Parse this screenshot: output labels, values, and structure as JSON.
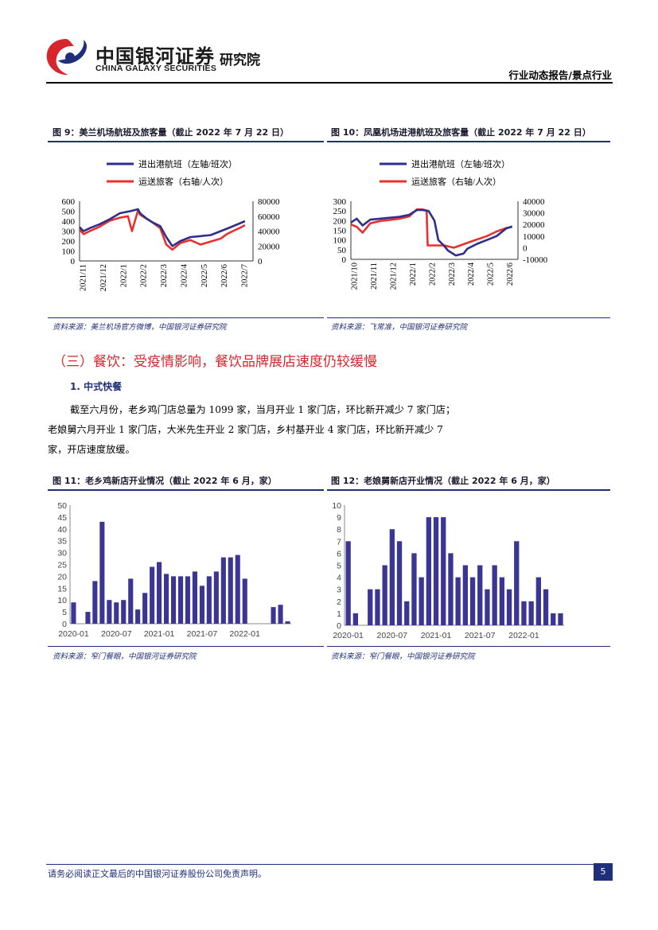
{
  "header": {
    "logo_cn": "中国银河证券",
    "logo_en": "CHINA GALAXY SECURITIES",
    "institute": "研究院",
    "report_type": "行业动态报告/景点行业"
  },
  "fig9": {
    "title": "图 9：美兰机场航班及旅客量（截止 2022 年 7 月 22 日）",
    "source": "资料来源：美兰机场官方微博，中国银河证券研究院"
  },
  "fig10": {
    "title": "图 10：凤凰机场进港航班及旅客量（截止 2022 年 7 月 22 日）",
    "source": "资料来源：飞常准，中国银河证券研究院"
  },
  "section3": {
    "heading": "（三）餐饮：受疫情影响，餐饮品牌展店速度仍较缓慢",
    "sub_heading": "1. 中式快餐",
    "para_lines": [
      "截至六月份，老乡鸡门店总量为 1099 家，当月开业 1 家门店，环比新开减少 7 家门店；",
      "老娘舅六月开业 1 家门店，大米先生开业 2 家门店，乡村基开业 4 家门店，环比新开减少 7",
      "家，开店速度放缓。"
    ]
  },
  "fig11": {
    "title": "图 11：老乡鸡新店开业情况（截止 2022 年 6 月，家）",
    "source": "资料来源：窄门餐眼，中国银河证券研究院"
  },
  "fig12": {
    "title": "图 12：老娘舅新店开业情况（截止 2022 年 6 月，家）",
    "source": "资料来源：窄门餐眼，中国银河证券研究院"
  },
  "footer": {
    "disclaimer": "请务必阅读正文最后的中国银河证券股份公司免责声明。",
    "page_number": "5"
  },
  "colors": {
    "navy": "#2e2f8c",
    "red": "#e8312f",
    "brand_red": "#d7262e",
    "bar": "#3b3594"
  },
  "chart_data": [
    {
      "id": "fig9",
      "type": "line",
      "legend": [
        "进出港航班（左轴/班次）",
        "运送旅客（右轴/人次）"
      ],
      "x_tick_labels": [
        "2021/11",
        "2021/12",
        "2022/1",
        "2022/2",
        "2022/3",
        "2022/4",
        "2022/5",
        "2022/6",
        "2022/7"
      ],
      "y_left": {
        "ticks": [
          "600",
          "500",
          "400",
          "300",
          "200",
          "100",
          "0"
        ],
        "range": [
          0,
          600
        ]
      },
      "y_right": {
        "ticks": [
          "80000",
          "60000",
          "40000",
          "20000",
          "0"
        ],
        "range": [
          0,
          80000
        ]
      },
      "series": [
        {
          "name": "进出港航班",
          "axis": "left",
          "color": "#2e2f8c",
          "x": [
            0,
            0.2,
            0.5,
            1,
            1.5,
            2,
            2.5,
            2.9,
            3,
            3.3,
            3.6,
            4,
            4.3,
            4.6,
            5,
            5.5,
            6,
            6.5,
            7,
            7.5,
            8.2
          ],
          "values": [
            340,
            300,
            330,
            370,
            420,
            480,
            500,
            520,
            480,
            430,
            390,
            350,
            240,
            150,
            200,
            240,
            250,
            260,
            300,
            340,
            400
          ]
        },
        {
          "name": "运送旅客",
          "axis": "right",
          "color": "#e8312f",
          "x": [
            0,
            0.2,
            0.5,
            1,
            1.5,
            2,
            2.4,
            2.6,
            2.9,
            3,
            3.3,
            3.6,
            4,
            4.3,
            4.6,
            5,
            5.5,
            6,
            6.5,
            7,
            7.3,
            7.6,
            8,
            8.2
          ],
          "values": [
            42000,
            36000,
            40000,
            46000,
            54000,
            58000,
            60000,
            40000,
            68000,
            62000,
            57000,
            52000,
            44000,
            22000,
            15000,
            24000,
            28000,
            22000,
            26000,
            30000,
            36000,
            40000,
            45000,
            48000
          ]
        }
      ]
    },
    {
      "id": "fig10",
      "type": "line",
      "legend": [
        "进出港航班（左轴/班次）",
        "运送旅客（右轴/人次）"
      ],
      "x_tick_labels": [
        "2021/10",
        "2021/11",
        "2021/12",
        "2022/1",
        "2022/2",
        "2022/3",
        "2022/4",
        "2022/5",
        "2022/6"
      ],
      "y_left": {
        "ticks": [
          "300",
          "250",
          "200",
          "150",
          "100",
          "50",
          "0"
        ],
        "range": [
          0,
          300
        ]
      },
      "y_right": {
        "ticks": [
          "40000",
          "30000",
          "20000",
          "10000",
          "0",
          "-10000"
        ],
        "range": [
          -10000,
          40000
        ]
      },
      "series": [
        {
          "name": "进出港航班",
          "axis": "left",
          "color": "#2e2f8c",
          "x": [
            0,
            0.3,
            0.6,
            1,
            1.5,
            2,
            2.5,
            3,
            3.4,
            3.7,
            4,
            4.3,
            4.5,
            4.8,
            5,
            5.4,
            5.8,
            6,
            6.5,
            7,
            7.5,
            8,
            8.3
          ],
          "values": [
            190,
            210,
            175,
            205,
            210,
            215,
            220,
            230,
            255,
            255,
            250,
            200,
            100,
            70,
            45,
            20,
            30,
            55,
            80,
            100,
            120,
            160,
            170
          ]
        },
        {
          "name": "运送旅客",
          "axis": "right",
          "color": "#e8312f",
          "x": [
            0,
            0.3,
            0.6,
            1,
            1.5,
            2,
            2.5,
            3,
            3.4,
            3.7,
            3.9,
            3.95,
            4.3,
            4.8,
            5.3,
            5.8,
            6.3,
            7,
            7.5,
            8,
            8.3
          ],
          "values": [
            20000,
            18000,
            13000,
            21000,
            23000,
            24000,
            25000,
            27000,
            33000,
            33000,
            32000,
            2000,
            2000,
            2000,
            0,
            3000,
            6000,
            10000,
            14000,
            17000,
            18000
          ]
        }
      ]
    },
    {
      "id": "fig11",
      "type": "bar",
      "x_tick_labels": [
        "2020-01",
        "2020-07",
        "2021-01",
        "2021-07",
        "2022-01"
      ],
      "y_ticks": [
        "50",
        "45",
        "40",
        "35",
        "30",
        "25",
        "20",
        "15",
        "10",
        "5",
        "0"
      ],
      "ylim": [
        0,
        50
      ],
      "values": [
        9,
        0,
        5,
        18,
        43,
        10,
        9,
        10,
        19,
        6,
        13,
        24,
        26,
        21,
        20,
        20,
        20,
        22,
        16,
        20,
        22,
        28,
        28,
        29,
        19,
        0,
        0,
        0,
        7,
        8,
        1
      ]
    },
    {
      "id": "fig12",
      "type": "bar",
      "x_tick_labels": [
        "2020-01",
        "2020-07",
        "2021-01",
        "2021-07",
        "2022-01"
      ],
      "y_ticks": [
        "10",
        "9",
        "8",
        "7",
        "6",
        "5",
        "4",
        "3",
        "2",
        "1",
        "0"
      ],
      "ylim": [
        0,
        10
      ],
      "values": [
        7,
        1,
        0,
        3,
        3,
        5,
        8,
        7,
        2,
        6,
        4,
        9,
        9,
        9,
        6,
        4,
        5,
        4,
        5,
        3,
        5,
        4,
        3,
        7,
        2,
        2,
        4,
        3,
        1,
        1
      ]
    }
  ]
}
